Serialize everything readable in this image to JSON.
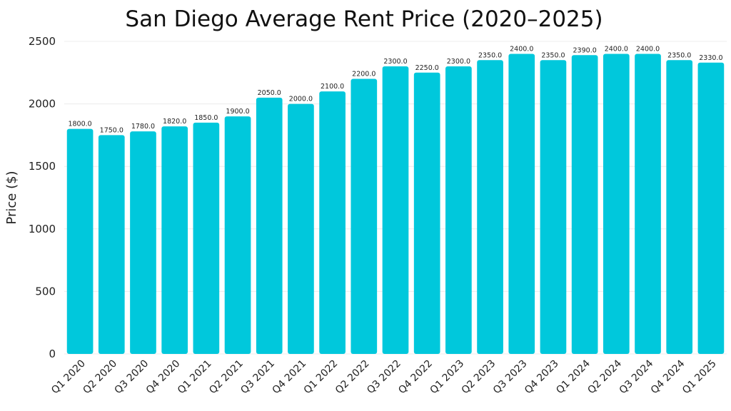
{
  "chart_data": {
    "type": "bar",
    "title": "San Diego Average Rent Price (2020–2025)",
    "xlabel": "",
    "ylabel": "Price ($)",
    "ylim": [
      0,
      2500
    ],
    "yticks": [
      0,
      500,
      1000,
      1500,
      2000,
      2500
    ],
    "grid": true,
    "bar_color": "#00c8dc",
    "categories": [
      "Q1 2020",
      "Q2 2020",
      "Q3 2020",
      "Q4 2020",
      "Q1 2021",
      "Q2 2021",
      "Q3 2021",
      "Q4 2021",
      "Q1 2022",
      "Q2 2022",
      "Q3 2022",
      "Q4 2022",
      "Q1 2023",
      "Q2 2023",
      "Q3 2023",
      "Q4 2023",
      "Q1 2024",
      "Q2 2024",
      "Q3 2024",
      "Q4 2024",
      "Q1 2025"
    ],
    "values": [
      1800,
      1750,
      1780,
      1820,
      1850,
      1900,
      2050,
      2000,
      2100,
      2200,
      2300,
      2250,
      2300,
      2350,
      2400,
      2350,
      2390,
      2400,
      2400,
      2350,
      2330
    ],
    "data_labels": [
      "1800.0",
      "1750.0",
      "1780.0",
      "1820.0",
      "1850.0",
      "1900.0",
      "2050.0",
      "2000.0",
      "2100.0",
      "2200.0",
      "2300.0",
      "2250.0",
      "2300.0",
      "2350.0",
      "2400.0",
      "2350.0",
      "2390.0",
      "2400.0",
      "2400.0",
      "2350.0",
      "2330.0"
    ]
  }
}
